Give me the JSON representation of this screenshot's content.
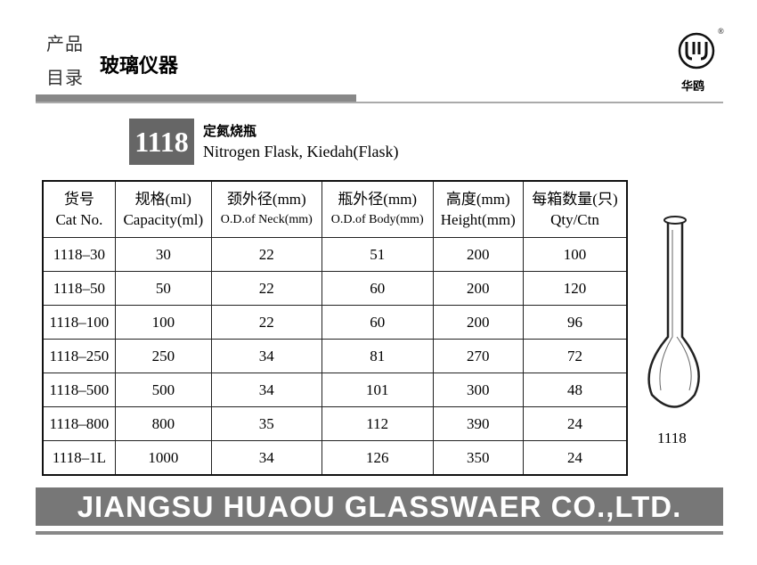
{
  "header": {
    "logo_top": "产品",
    "logo_bottom": "目录",
    "section": "玻璃仪器",
    "brand": "华鸥",
    "brand_mark": "®"
  },
  "product": {
    "code": "1118",
    "name_zh": "定氮烧瓶",
    "name_en": "Nitrogen Flask, Kiedah(Flask)"
  },
  "table": {
    "columns": [
      {
        "zh": "货号",
        "en": "Cat No."
      },
      {
        "zh": "规格(ml)",
        "en": "Capacity(ml)"
      },
      {
        "zh": "颈外径(mm)",
        "en": "O.D.of Neck(mm)"
      },
      {
        "zh": "瓶外径(mm)",
        "en": "O.D.of Body(mm)"
      },
      {
        "zh": "高度(mm)",
        "en": "Height(mm)"
      },
      {
        "zh": "每箱数量(只)",
        "en": "Qty/Ctn"
      }
    ],
    "rows": [
      [
        "1118–30",
        30,
        22,
        51,
        200,
        100
      ],
      [
        "1118–50",
        50,
        22,
        60,
        200,
        120
      ],
      [
        "1118–100",
        100,
        22,
        60,
        200,
        96
      ],
      [
        "1118–250",
        250,
        34,
        81,
        270,
        72
      ],
      [
        "1118–500",
        500,
        34,
        101,
        300,
        48
      ],
      [
        "1118–800",
        800,
        35,
        112,
        390,
        24
      ],
      [
        "1118–1L",
        1000,
        34,
        126,
        350,
        24
      ]
    ]
  },
  "figure": {
    "caption": "1118"
  },
  "footer": {
    "company": "JIANGSU HUAOU GLASSWAER CO.,LTD."
  }
}
